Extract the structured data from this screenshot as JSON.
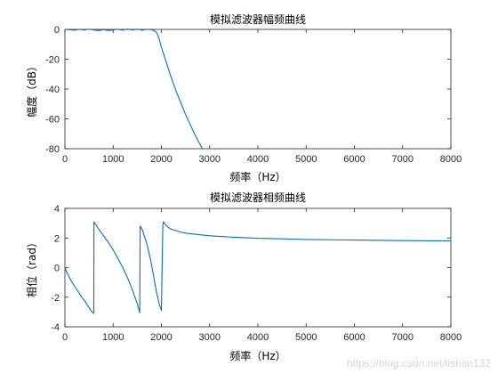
{
  "chart_data": [
    {
      "type": "line",
      "title": "模拟滤波器幅频曲线",
      "xlabel": "频率（Hz）",
      "ylabel": "幅度（dB）",
      "xlim": [
        0,
        8000
      ],
      "ylim": [
        -80,
        0
      ],
      "xticks": [
        0,
        1000,
        2000,
        3000,
        4000,
        5000,
        6000,
        7000,
        8000
      ],
      "yticks": [
        -80,
        -60,
        -40,
        -20,
        0
      ],
      "grid": false,
      "color": "#0072bd",
      "series": [
        {
          "x": [
            0,
            100,
            200,
            300,
            400,
            500,
            600,
            700,
            800,
            900,
            1000,
            1100,
            1200,
            1300,
            1400,
            1500,
            1600,
            1700,
            1800,
            1850,
            1900,
            1950,
            2000,
            2100,
            2200,
            2300,
            2400,
            2500,
            2600,
            2700,
            2800,
            2850
          ],
          "y": [
            0,
            -0.3,
            -0.6,
            0.1,
            -0.5,
            0.2,
            -0.4,
            -0.8,
            -0.2,
            -0.7,
            -0.4,
            0.1,
            -0.6,
            0.3,
            -0.5,
            0.2,
            -0.6,
            0.1,
            -0.3,
            -0.8,
            -2,
            -6,
            -12,
            -22,
            -32,
            -41,
            -49,
            -57,
            -64,
            -71,
            -77,
            -80
          ]
        }
      ]
    },
    {
      "type": "line",
      "title": "模拟滤波器相频曲线",
      "xlabel": "频率（Hz）",
      "ylabel": "相位（rad）",
      "xlim": [
        0,
        8000
      ],
      "ylim": [
        -4,
        4
      ],
      "xticks": [
        0,
        1000,
        2000,
        3000,
        4000,
        5000,
        6000,
        7000,
        8000
      ],
      "yticks": [
        -4,
        -2,
        0,
        2,
        4
      ],
      "grid": false,
      "color": "#0072bd",
      "series": [
        {
          "x": [
            0,
            50,
            100,
            150,
            200,
            250,
            300,
            350,
            400,
            450,
            500,
            550,
            600,
            601,
            650,
            700,
            800,
            900,
            1000,
            1100,
            1200,
            1300,
            1400,
            1450,
            1500,
            1550,
            1560,
            1600,
            1650,
            1700,
            1750,
            1800,
            1850,
            1900,
            1950,
            2000,
            2030,
            2040,
            2060,
            2100,
            2150,
            2200,
            2300,
            2400,
            2500,
            2700,
            3000,
            3500,
            4000,
            4500,
            5000,
            6000,
            7000,
            8000
          ],
          "y": [
            0,
            -0.4,
            -0.7,
            -1.0,
            -1.25,
            -1.5,
            -1.75,
            -2.0,
            -2.2,
            -2.45,
            -2.7,
            -2.95,
            -3.1,
            3.1,
            2.85,
            2.6,
            2.15,
            1.7,
            1.2,
            0.6,
            0.0,
            -0.7,
            -1.5,
            -2.0,
            -2.45,
            -3.05,
            2.8,
            2.6,
            2.1,
            1.6,
            0.9,
            0.1,
            -0.8,
            -1.7,
            -2.4,
            -2.9,
            2.8,
            3.1,
            3.0,
            2.85,
            2.7,
            2.6,
            2.5,
            2.4,
            2.33,
            2.25,
            2.15,
            2.05,
            1.98,
            1.94,
            1.9,
            1.86,
            1.82,
            1.8
          ]
        }
      ]
    }
  ],
  "watermark": "https://blog.csdn.net/lishan132"
}
